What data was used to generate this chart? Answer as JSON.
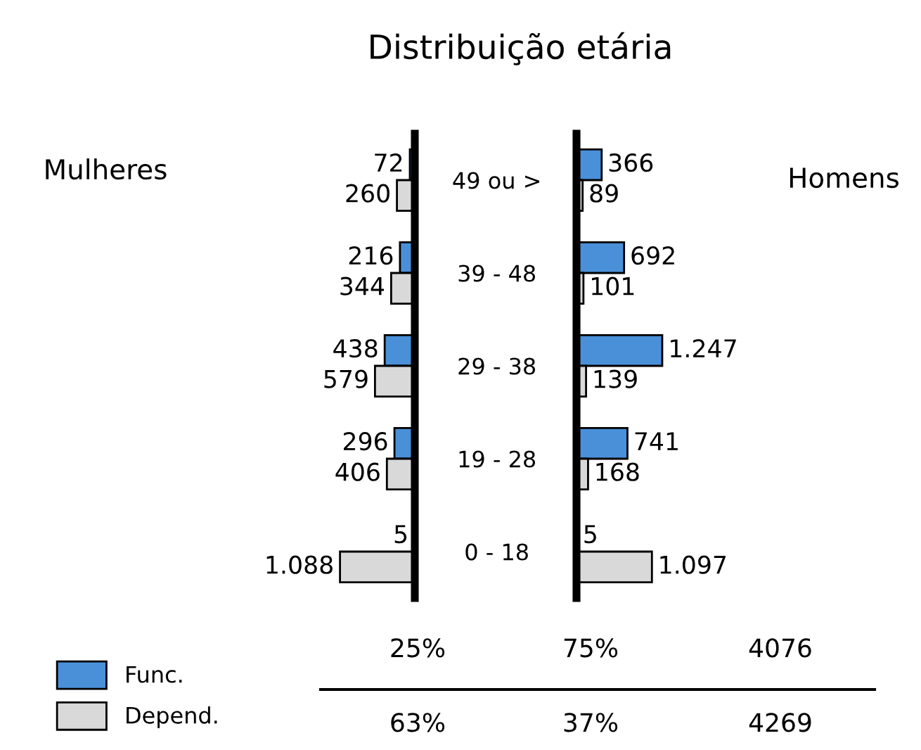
{
  "chart_data": [
    {
      "type": "bar",
      "orientation": "horizontal",
      "title": "Distribuição etária",
      "ylabel": "Mulheres",
      "legend": "bottom left",
      "categories": [
        "49 ou >",
        "39 - 48",
        "29 - 38",
        "19 - 28",
        "0 - 18"
      ],
      "series": [
        {
          "name": "Func.",
          "color": "#4a90d9",
          "values": [
            72,
            216,
            438,
            296,
            5
          ],
          "value_labels": [
            "72",
            "216",
            "438",
            "296",
            "5"
          ]
        },
        {
          "name": "Depend.",
          "color": "#d9d9d9",
          "values": [
            260,
            344,
            579,
            406,
            1088
          ],
          "value_labels": [
            "260",
            "344",
            "579",
            "406",
            "1.088"
          ]
        }
      ],
      "annotations": [
        "25%",
        "75%",
        "4076",
        "63%",
        "37%",
        "4269"
      ]
    },
    {
      "type": "bar",
      "orientation": "horizontal",
      "ylabel": "Homens",
      "categories": [
        null,
        null,
        null,
        null,
        null
      ],
      "series": [
        {
          "color": "#4a90d9",
          "values": [
            366,
            692,
            1247,
            741,
            5
          ],
          "value_labels": [
            "366",
            "692",
            "1.247",
            "741",
            "5"
          ]
        },
        {
          "color": "#d9d9d9",
          "values": [
            89,
            101,
            139,
            168,
            1097
          ],
          "value_labels": [
            "89",
            "101",
            "139",
            "168",
            "1.097"
          ]
        }
      ]
    }
  ]
}
